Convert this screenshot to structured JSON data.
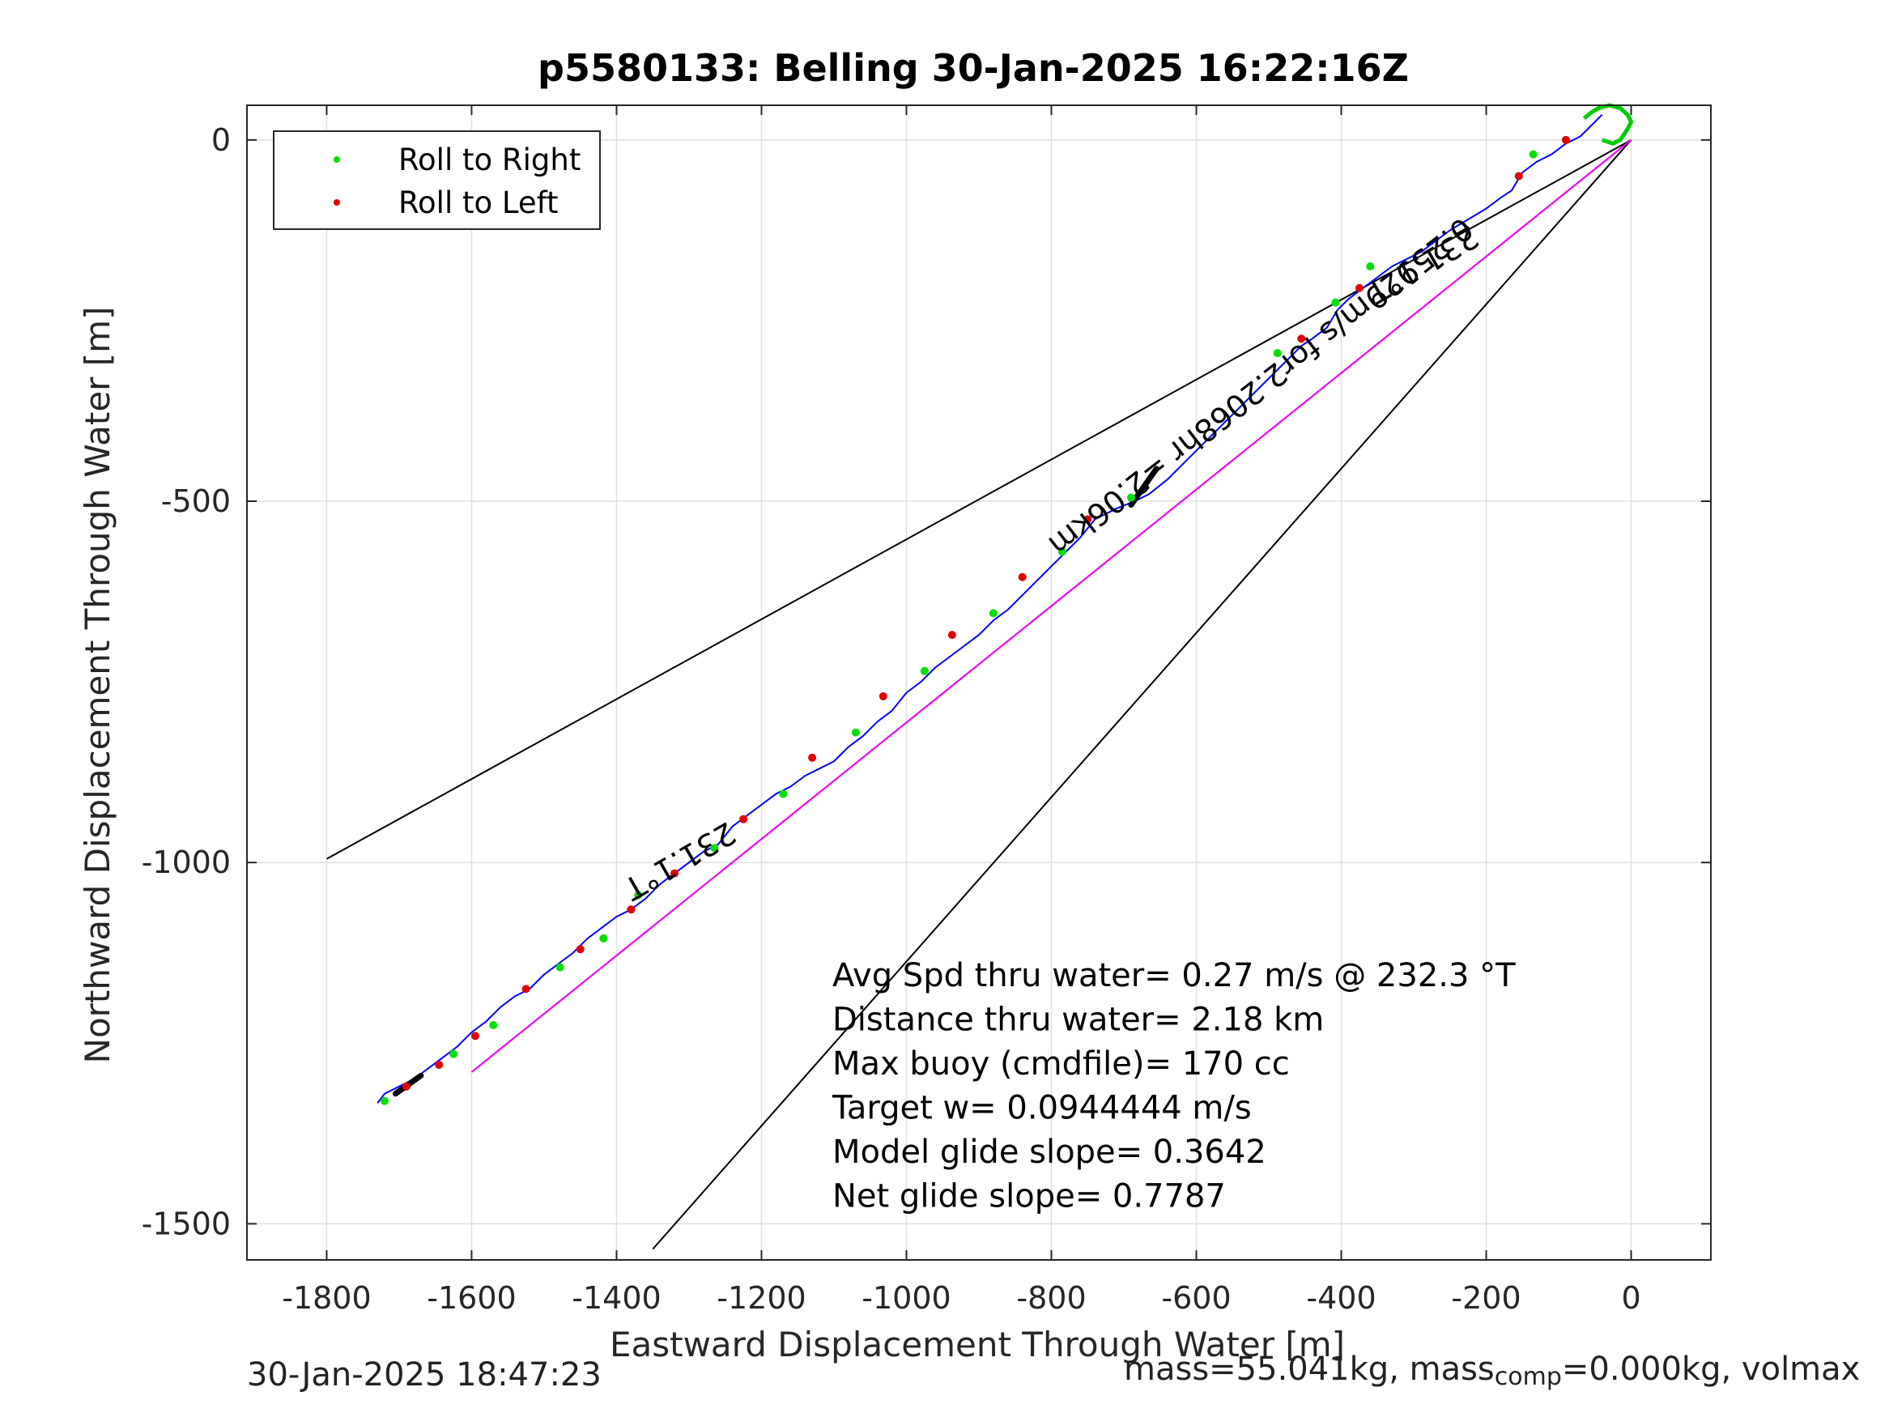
{
  "chart_data": {
    "type": "line",
    "title": "p5580133: Belling 30-Jan-2025 16:22:16Z",
    "xlabel": "Eastward Displacement Through Water [m]",
    "ylabel": "Northward Displacement Through Water [m]",
    "xlim": [
      -1910,
      110
    ],
    "ylim": [
      -1550,
      48
    ],
    "xticks": [
      -1800,
      -1600,
      -1400,
      -1200,
      -1000,
      -800,
      -600,
      -400,
      -200,
      0
    ],
    "yticks": [
      0,
      -500,
      -1000,
      -1500
    ],
    "grid": true,
    "legend_position": "top-left",
    "legend": [
      {
        "label": "Roll to Right",
        "color": "#00e000"
      },
      {
        "label": "Roll to Left",
        "color": "#e00000"
      }
    ],
    "series": [
      {
        "color": "#0000ff",
        "x": [
          -40,
          -55,
          -70,
          -90,
          -110,
          -130,
          -150,
          -165,
          -180,
          -200,
          -225,
          -250,
          -270,
          -290,
          -310,
          -330,
          -350,
          -370,
          -390,
          -405,
          -420,
          -440,
          -455,
          -470,
          -490,
          -510,
          -530,
          -550,
          -580,
          -610,
          -640,
          -665,
          -685,
          -710,
          -740,
          -760,
          -780,
          -800,
          -820,
          -840,
          -860,
          -880,
          -900,
          -920,
          -940,
          -960,
          -980,
          -1000,
          -1020,
          -1040,
          -1060,
          -1080,
          -1100,
          -1120,
          -1140,
          -1160,
          -1180,
          -1200,
          -1220,
          -1240,
          -1260,
          -1280,
          -1300,
          -1320,
          -1340,
          -1360,
          -1380,
          -1400,
          -1420,
          -1440,
          -1460,
          -1480,
          -1500,
          -1520,
          -1540,
          -1560,
          -1580,
          -1600,
          -1620,
          -1640,
          -1660,
          -1680,
          -1700,
          -1720,
          -1730
        ],
        "y": [
          35,
          20,
          5,
          -5,
          -20,
          -30,
          -45,
          -70,
          -80,
          -95,
          -110,
          -125,
          -140,
          -155,
          -165,
          -175,
          -190,
          -205,
          -220,
          -235,
          -260,
          -275,
          -285,
          -300,
          -320,
          -340,
          -360,
          -380,
          -410,
          -440,
          -470,
          -490,
          -500,
          -510,
          -525,
          -550,
          -570,
          -590,
          -610,
          -630,
          -650,
          -665,
          -685,
          -700,
          -715,
          -730,
          -750,
          -765,
          -790,
          -805,
          -825,
          -840,
          -860,
          -870,
          -880,
          -895,
          -905,
          -920,
          -935,
          -950,
          -975,
          -985,
          -1000,
          -1015,
          -1030,
          -1050,
          -1065,
          -1075,
          -1090,
          -1105,
          -1125,
          -1140,
          -1155,
          -1175,
          -1185,
          -1200,
          -1220,
          -1235,
          -1255,
          -1270,
          -1285,
          -1300,
          -1310,
          -1320,
          -1333
        ]
      },
      {
        "color": "#ff00ff",
        "x": [
          0,
          -1600
        ],
        "y": [
          0,
          -1290
        ]
      },
      {
        "color": "#00cc00",
        "x": [
          -40,
          -25,
          -15,
          -5,
          0,
          -5,
          -15,
          -30,
          -45,
          -55,
          -65
        ],
        "y": [
          0,
          -5,
          0,
          15,
          25,
          35,
          44,
          48,
          44,
          38,
          30
        ]
      }
    ],
    "reference_lines": [
      {
        "x": [
          0,
          -1800
        ],
        "y": [
          0,
          -995
        ],
        "color": "#000000"
      },
      {
        "x": [
          0,
          -1350
        ],
        "y": [
          0,
          -1535
        ],
        "color": "#000000"
      },
      {
        "x": [
          0,
          -1600
        ],
        "y": [
          0,
          -1290
        ],
        "color": "#000000"
      }
    ],
    "roll_right_points": {
      "x": [
        -135,
        -360,
        -408,
        -488,
        -690,
        -785,
        -880,
        -975,
        -1070,
        -1170,
        -1265,
        -1370,
        -1418,
        -1478,
        -1570,
        -1625,
        -1720
      ],
      "y": [
        -20,
        -175,
        -225,
        -295,
        -495,
        -570,
        -655,
        -735,
        -820,
        -905,
        -980,
        -1045,
        -1105,
        -1145,
        -1225,
        -1265,
        -1330
      ]
    },
    "roll_left_points": {
      "x": [
        -90,
        -155,
        -375,
        -455,
        -750,
        -840,
        -937,
        -1032,
        -1130,
        -1225,
        -1320,
        -1380,
        -1450,
        -1525,
        -1595,
        -1645,
        -1690
      ],
      "y": [
        0,
        -50,
        -205,
        -275,
        -525,
        -605,
        -685,
        -770,
        -855,
        -940,
        -1015,
        -1065,
        -1120,
        -1175,
        -1240,
        -1280,
        -1310
      ]
    },
    "thick_segments": [
      {
        "x": [
          -655,
          -690
        ],
        "y": [
          -455,
          -505
        ]
      },
      {
        "x": [
          -1670,
          -1705
        ],
        "y": [
          -1295,
          -1320
        ]
      }
    ],
    "annotations": [
      {
        "text": "231.1°T",
        "x": -295,
        "y": -160,
        "rotation": 150
      },
      {
        "text": "231.1°T",
        "x": -1320,
        "y": -985,
        "rotation": 150
      },
      {
        "text": "0.25929m/s for2.2068hr =2.06km",
        "x": -520,
        "y": -330,
        "rotation": 142
      }
    ],
    "stats": [
      "Avg Spd thru water=  0.27 m/s @ 232.3 °T",
      "Distance thru water=  2.18 km",
      "Max buoy (cmdfile)= 170 cc",
      "Target w= 0.0944444 m/s",
      "Model glide slope= 0.3642",
      "Net glide slope= 0.7787"
    ]
  },
  "footer": {
    "timestamp": "30-Jan-2025 18:47:23",
    "mass_text": "mass=55.041kg, mass",
    "mass_sub": "comp",
    "mass_rest": "=0.000kg, volmax"
  }
}
